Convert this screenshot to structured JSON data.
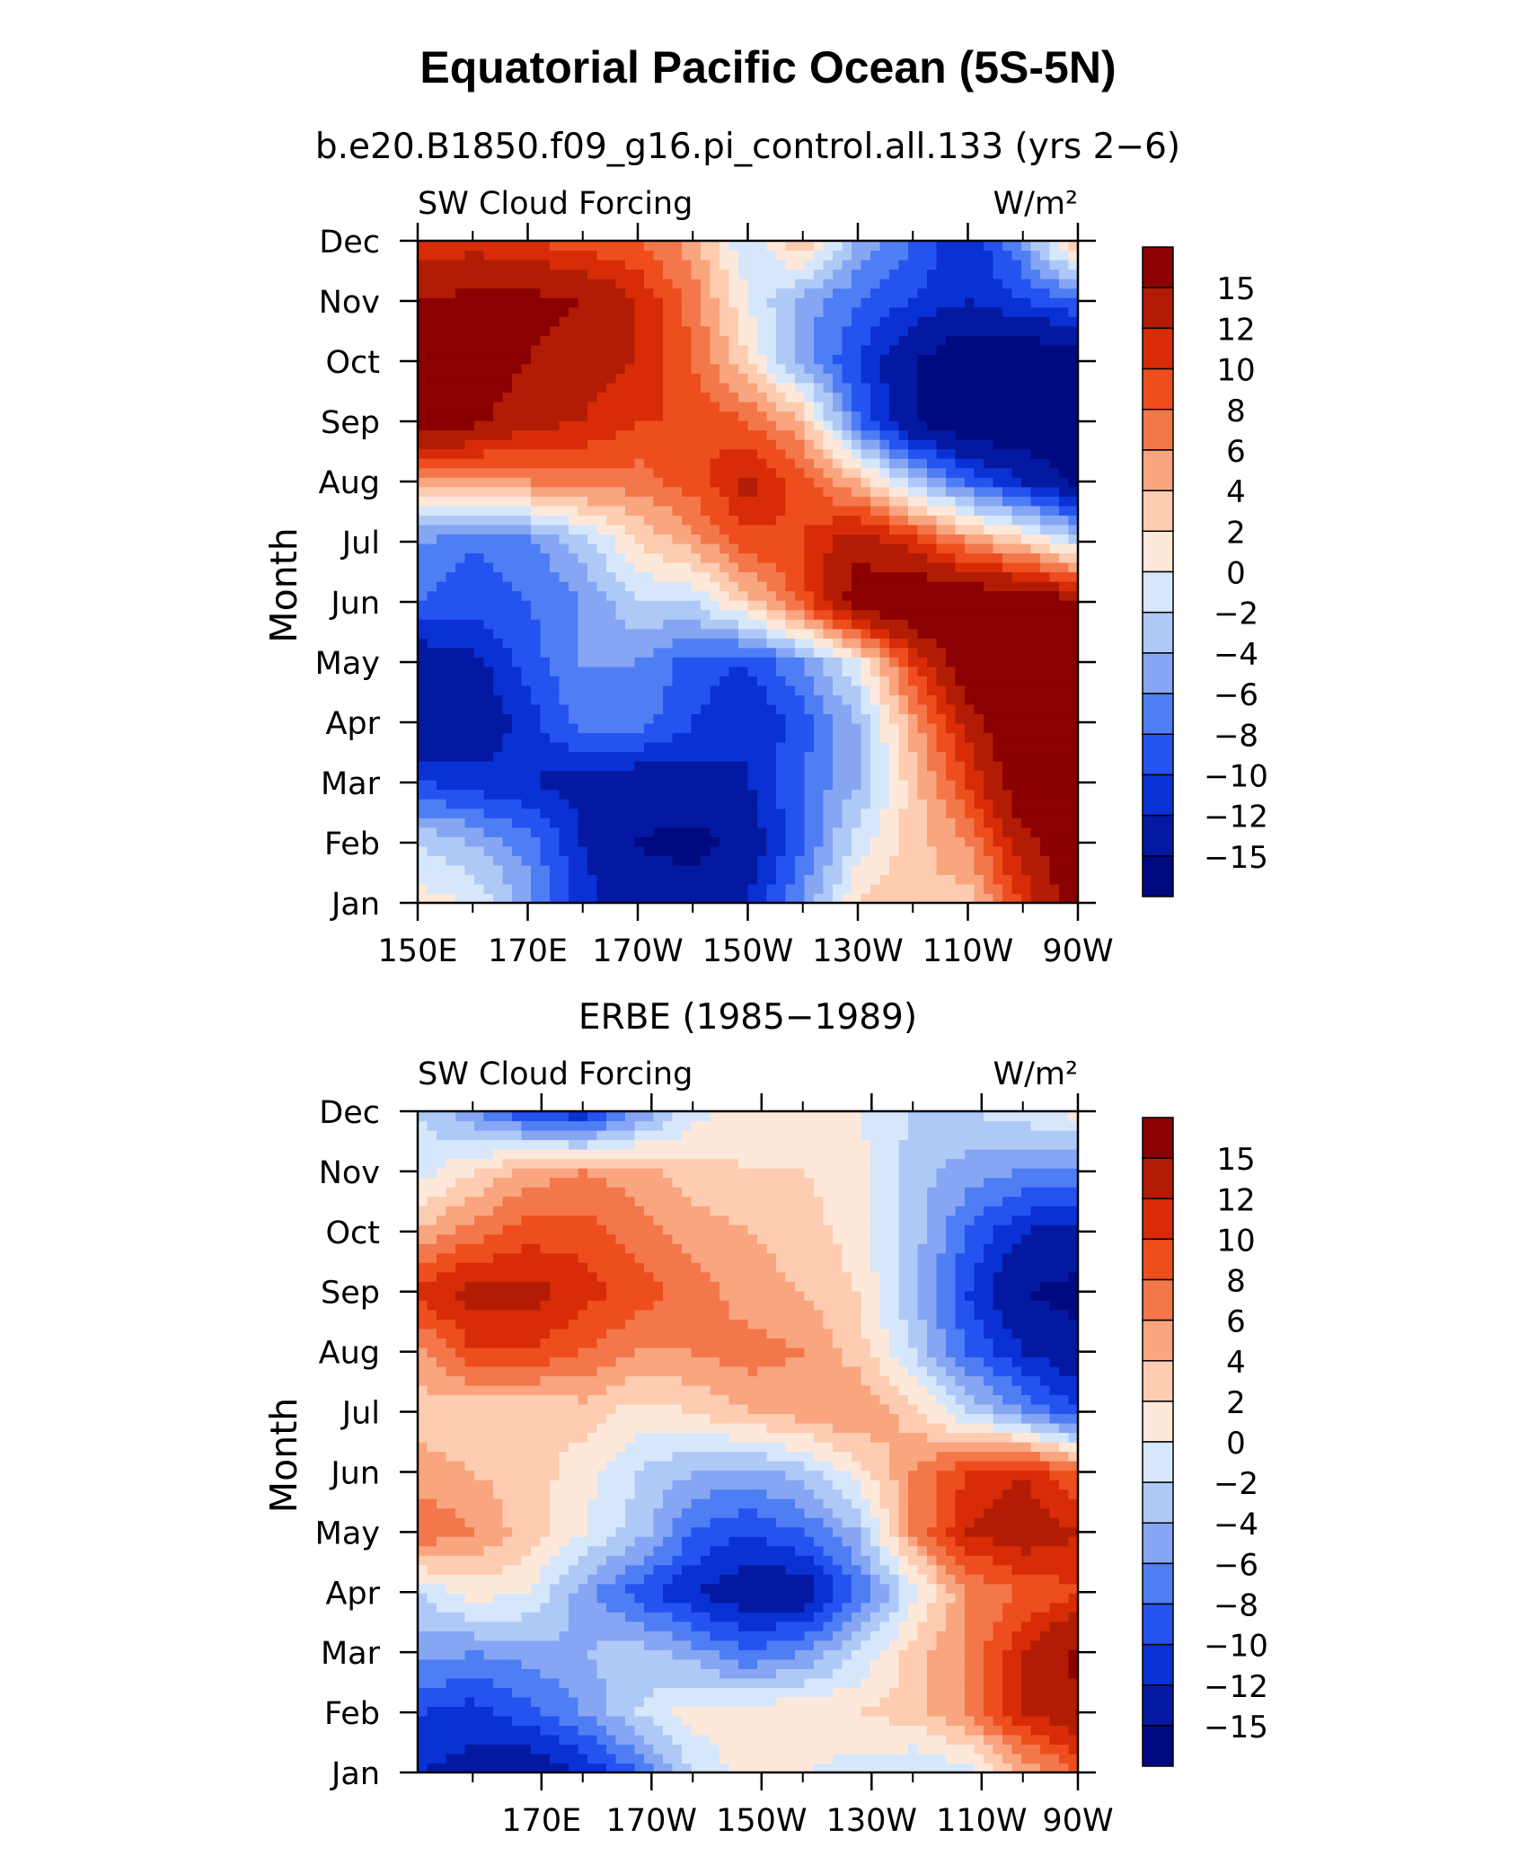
{
  "title": "Equatorial Pacific Ocean (5S-5N)",
  "chart_data": [
    {
      "type": "heatmap",
      "title": "b.e20.B1850.f09_g16.pi_control.all.133 (yrs 2−6)",
      "left_label": "SW Cloud Forcing",
      "right_label": "W/m²",
      "ylabel": "Month",
      "xlabel": "",
      "x_tick_labels": [
        "150E",
        "170E",
        "170W",
        "150W",
        "130W",
        "110W",
        "90W"
      ],
      "y_tick_labels": [
        "Jan",
        "Feb",
        "Mar",
        "Apr",
        "May",
        "Jun",
        "Jul",
        "Aug",
        "Sep",
        "Oct",
        "Nov",
        "Dec"
      ],
      "x": [
        150,
        160,
        170,
        180,
        190,
        200,
        210,
        220,
        230,
        240,
        250,
        260,
        270
      ],
      "colorbar_labels": [
        "15",
        "12",
        "10",
        "8",
        "6",
        "4",
        "2",
        "0",
        "−2",
        "−4",
        "−6",
        "−8",
        "−10",
        "−12",
        "−15"
      ],
      "values": [
        [
          1,
          0,
          -5,
          -11,
          -14,
          -13,
          -12,
          -6,
          2,
          4,
          3,
          10,
          18
        ],
        [
          -2,
          -4,
          -7,
          -12,
          -15,
          -16,
          -14,
          -8,
          -1,
          3,
          6,
          14,
          18
        ],
        [
          -10,
          -11,
          -12,
          -13,
          -14,
          -13,
          -12,
          -8,
          -4,
          3,
          10,
          18,
          20
        ],
        [
          -15,
          -14,
          -11,
          -7,
          -7,
          -10,
          -12,
          -9,
          -4,
          5,
          13,
          19,
          20
        ],
        [
          -14,
          -13,
          -9,
          -6,
          -6,
          -9,
          -10,
          -6,
          0,
          10,
          18,
          20,
          20
        ],
        [
          -8,
          -9,
          -8,
          -6,
          -2,
          -2,
          3,
          9,
          17,
          19,
          19,
          18,
          16
        ],
        [
          -6,
          -8,
          -7,
          -3,
          2,
          5,
          9,
          10,
          14,
          11,
          6,
          3,
          -2
        ],
        [
          4,
          5,
          6,
          7,
          7,
          9,
          13,
          9,
          4,
          -3,
          -8,
          -12,
          -16
        ],
        [
          18,
          16,
          13,
          12,
          10,
          10,
          8,
          4,
          -8,
          -15,
          -18,
          -18,
          -18
        ],
        [
          17,
          17,
          15,
          13,
          12,
          8,
          2,
          -5,
          -10,
          -15,
          -18,
          -18,
          -18
        ],
        [
          15,
          16,
          16,
          15,
          12,
          7,
          0,
          -5,
          -8,
          -10,
          -12,
          -10,
          -8
        ],
        [
          10,
          11,
          10,
          9,
          8,
          5,
          -2,
          4,
          -4,
          -8,
          -12,
          -6,
          5
        ]
      ]
    },
    {
      "type": "heatmap",
      "title": "ERBE (1985−1989)",
      "left_label": "SW Cloud Forcing",
      "right_label": "W/m²",
      "ylabel": "Month",
      "xlabel": "",
      "x_tick_labels": [
        "170E",
        "170W",
        "150W",
        "130W",
        "110W",
        "90W"
      ],
      "y_tick_labels": [
        "Jan",
        "Feb",
        "Mar",
        "Apr",
        "May",
        "Jun",
        "Jul",
        "Aug",
        "Sep",
        "Oct",
        "Nov",
        "Dec"
      ],
      "x": [
        150,
        160,
        170,
        180,
        190,
        200,
        210,
        220,
        230,
        240,
        250,
        260,
        270
      ],
      "colorbar_labels": [
        "15",
        "12",
        "10",
        "8",
        "6",
        "4",
        "2",
        "0",
        "−2",
        "−4",
        "−6",
        "−8",
        "−10",
        "−12",
        "−15"
      ],
      "values": [
        [
          -12,
          -13,
          -14,
          -12,
          -8,
          -2,
          1,
          0,
          -1,
          -2,
          -1,
          4,
          8
        ],
        [
          -10,
          -11,
          -9,
          -6,
          -2,
          1,
          1,
          2,
          2,
          3,
          6,
          12,
          14
        ],
        [
          -5,
          -6,
          -5,
          -4,
          -3,
          -5,
          -8,
          -6,
          -2,
          3,
          6,
          12,
          16
        ],
        [
          -2,
          1,
          0,
          -5,
          -9,
          -12,
          -14,
          -14,
          -8,
          -1,
          6,
          8,
          10
        ],
        [
          8,
          6,
          3,
          0,
          -3,
          -8,
          -10,
          -8,
          -4,
          6,
          12,
          14,
          12
        ],
        [
          5,
          4,
          3,
          1,
          -2,
          -4,
          -5,
          -3,
          1,
          6,
          10,
          12,
          8
        ],
        [
          3,
          2,
          2,
          3,
          1,
          2,
          4,
          5,
          6,
          3,
          -2,
          -6,
          -10
        ],
        [
          5,
          10,
          10,
          8,
          6,
          6,
          7,
          6,
          3,
          -2,
          -8,
          -12,
          -14
        ],
        [
          11,
          13,
          13,
          11,
          9,
          7,
          5,
          4,
          2,
          -4,
          -10,
          -15,
          -16
        ],
        [
          4,
          7,
          9,
          9,
          7,
          5,
          4,
          3,
          1,
          -3,
          -8,
          -12,
          -13
        ],
        [
          -1,
          2,
          5,
          6,
          5,
          3,
          2,
          2,
          1,
          -3,
          -5,
          -6,
          -7
        ],
        [
          -2,
          -6,
          -10,
          -12,
          -6,
          -1,
          1,
          1,
          0,
          -2,
          -2,
          -1,
          1
        ]
      ]
    }
  ]
}
